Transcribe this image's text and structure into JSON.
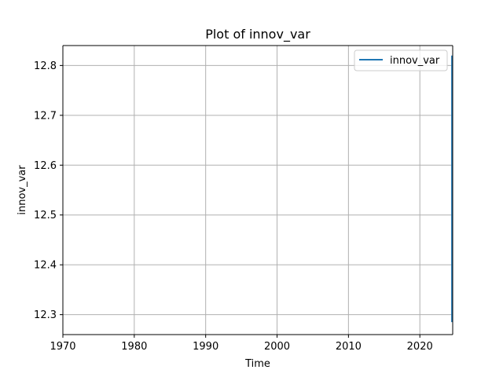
{
  "chart_data": {
    "type": "line",
    "title": "Plot of innov_var",
    "xlabel": "Time",
    "ylabel": "innov_var",
    "xlim": [
      1970,
      2024.6
    ],
    "ylim": [
      12.26,
      12.84
    ],
    "x_ticks": [
      1970,
      1980,
      1990,
      2000,
      2010,
      2020
    ],
    "x_tick_labels": [
      "1970",
      "1980",
      "1990",
      "2000",
      "2010",
      "2020"
    ],
    "y_ticks": [
      12.3,
      12.4,
      12.5,
      12.6,
      12.7,
      12.8
    ],
    "y_tick_labels": [
      "12.3",
      "12.4",
      "12.5",
      "12.6",
      "12.7",
      "12.8"
    ],
    "grid": true,
    "legend_position": "top-right",
    "series": [
      {
        "name": "innov_var",
        "color": "#1f77b4",
        "points": [
          {
            "x": 2024.5,
            "y": 12.285
          },
          {
            "x": 2024.5,
            "y": 12.82
          }
        ]
      }
    ]
  }
}
